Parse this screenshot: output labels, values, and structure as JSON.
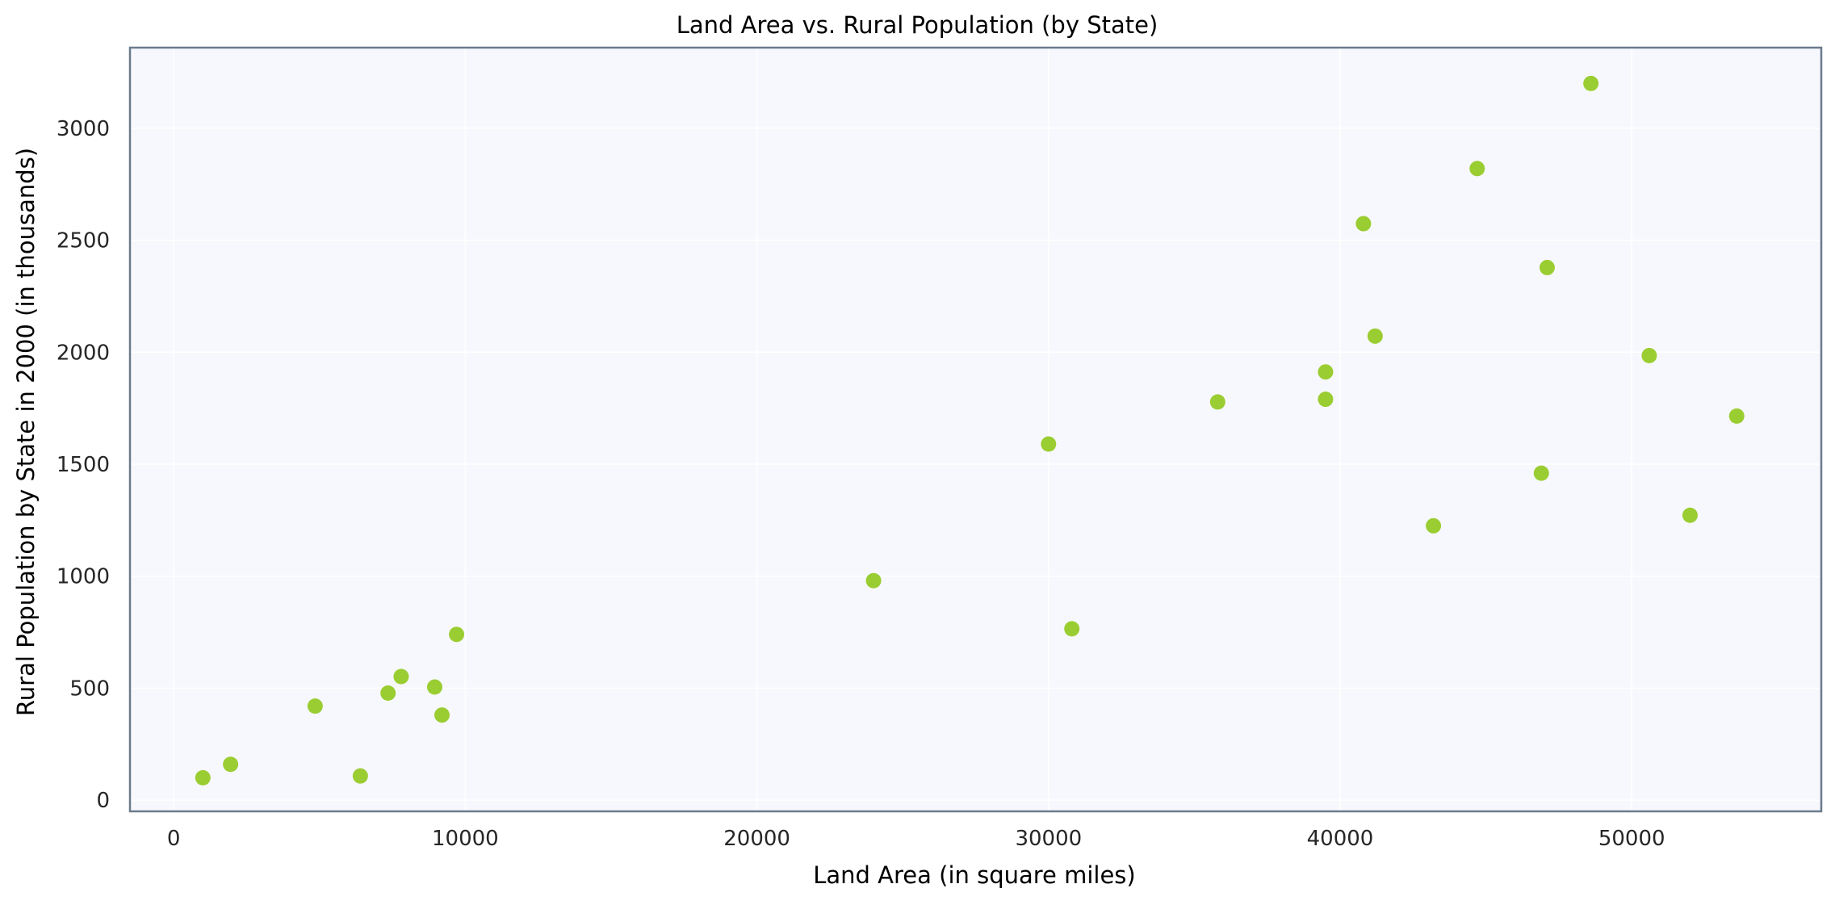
{
  "chart_data": {
    "type": "scatter",
    "title": "Land Area vs. Rural Population (by State)",
    "xlabel": "Land Area (in square miles)",
    "ylabel": "Rural Population by State in 2000 (in thousands)",
    "xlim": [
      -1500,
      56500
    ],
    "ylim": [
      -50,
      3360
    ],
    "xticks": [
      0,
      10000,
      20000,
      30000,
      40000,
      50000
    ],
    "yticks": [
      0,
      500,
      1000,
      1500,
      2000,
      2500,
      3000
    ],
    "grid": true,
    "colors": {
      "point": "#9acd32",
      "plot_background": "#f7f8fd",
      "frame": "#6b7b8c",
      "grid": "#ffffff",
      "text": "#262626"
    },
    "points": [
      {
        "x": 1000,
        "y": 100
      },
      {
        "x": 1950,
        "y": 160
      },
      {
        "x": 4850,
        "y": 420
      },
      {
        "x": 6400,
        "y": 108
      },
      {
        "x": 7350,
        "y": 478
      },
      {
        "x": 7800,
        "y": 552
      },
      {
        "x": 8950,
        "y": 505
      },
      {
        "x": 9200,
        "y": 380
      },
      {
        "x": 9700,
        "y": 740
      },
      {
        "x": 24000,
        "y": 980
      },
      {
        "x": 30000,
        "y": 1590
      },
      {
        "x": 30800,
        "y": 765
      },
      {
        "x": 35800,
        "y": 1778
      },
      {
        "x": 39500,
        "y": 1790
      },
      {
        "x": 39500,
        "y": 1912
      },
      {
        "x": 40800,
        "y": 2574
      },
      {
        "x": 41200,
        "y": 2072
      },
      {
        "x": 43200,
        "y": 1225
      },
      {
        "x": 44700,
        "y": 2820
      },
      {
        "x": 46900,
        "y": 1460
      },
      {
        "x": 47100,
        "y": 2378
      },
      {
        "x": 48600,
        "y": 3200
      },
      {
        "x": 50600,
        "y": 1985
      },
      {
        "x": 52000,
        "y": 1272
      },
      {
        "x": 53600,
        "y": 1715
      }
    ]
  }
}
